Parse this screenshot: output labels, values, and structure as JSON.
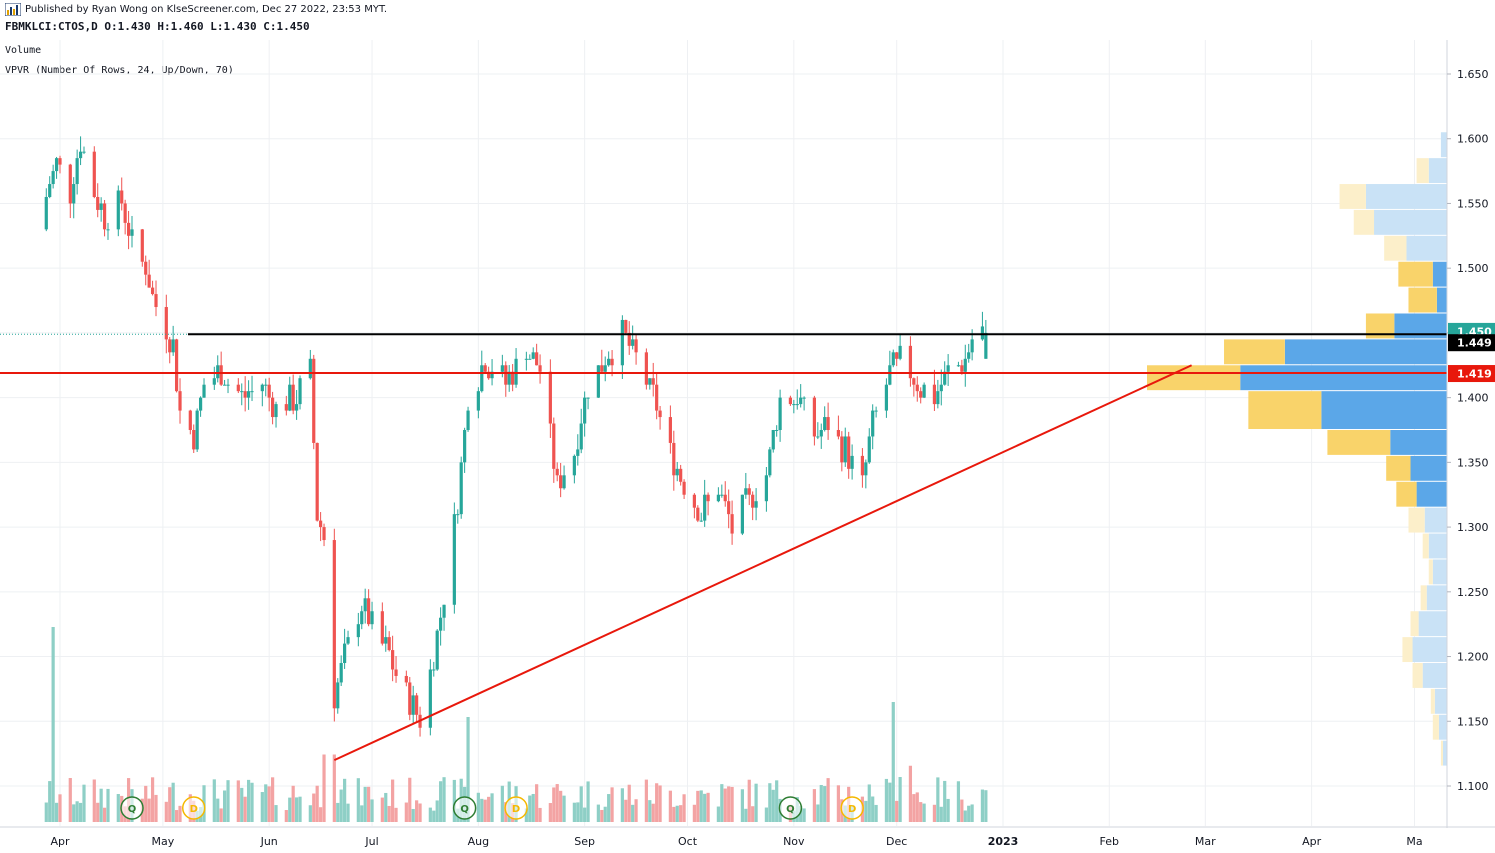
{
  "header": {
    "published": "Published by Ryan Wong on KlseScreener.com, Dec 27 2022, 23:53 MYT.",
    "symbol_line": "FBMKLCI:CTOS,D  O:1.430 H:1.460 L:1.430 C:1.450",
    "indicator_volume": "Volume",
    "indicator_vpvr": "VPVR (Number Of Rows, 24, Up/Down, 70)"
  },
  "colors": {
    "up": "#26a69a",
    "down": "#ef5350",
    "volume_up": "#8ecfc6",
    "volume_down": "#f3a3a3",
    "vpvr_up": "#5ba7e8",
    "vpvr_down": "#f9d36a",
    "vpvr_up_light": "#c9e2f6",
    "vpvr_down_light": "#fcefca",
    "resistance": "#000000",
    "support": "#e8180c",
    "trendline": "#e8180c",
    "grid": "#eef0f3",
    "event_q": "#2e7d32",
    "event_d": "#f5b800"
  },
  "chart_data": {
    "type": "candlestick",
    "title": "FBMKLCI:CTOS,D",
    "ylim": [
      1.095,
      1.665
    ],
    "grid": true,
    "x_tick_labels": [
      "Apr",
      "May",
      "Jun",
      "Jul",
      "Aug",
      "Sep",
      "Oct",
      "Nov",
      "Dec",
      "2023",
      "Feb",
      "Mar",
      "Apr",
      "Ma"
    ],
    "y_tick_labels": [
      "1.650",
      "1.600",
      "1.550",
      "1.500",
      "1.450",
      "1.400",
      "1.350",
      "1.300",
      "1.250",
      "1.200",
      "1.150",
      "1.100"
    ],
    "y_ticks": [
      1.65,
      1.6,
      1.55,
      1.5,
      1.45,
      1.4,
      1.35,
      1.3,
      1.25,
      1.2,
      1.15,
      1.1
    ],
    "last_ohlc": {
      "open": 1.43,
      "high": 1.46,
      "low": 1.43,
      "close": 1.45
    },
    "price_tags": [
      {
        "value": "1.450",
        "price": 1.45,
        "color": "#26a69a"
      },
      {
        "value": "1.449",
        "price": 1.449,
        "color": "#000000"
      },
      {
        "value": "1.419",
        "price": 1.419,
        "color": "#e8180c"
      }
    ],
    "horizontal_lines": [
      {
        "name": "resistance",
        "price": 1.449,
        "color": "#000000"
      },
      {
        "name": "support",
        "price": 1.419,
        "color": "#e8180c"
      }
    ],
    "trendline": {
      "from": {
        "date": "2022-06-20",
        "price": 1.12
      },
      "to": {
        "date": "2023-02-25",
        "price": 1.425
      }
    },
    "events": [
      {
        "label": "Q",
        "date": "2022-04-22",
        "kind": "quarterly"
      },
      {
        "label": "D",
        "date": "2022-05-10",
        "kind": "dividend"
      },
      {
        "label": "Q",
        "date": "2022-07-28",
        "kind": "quarterly"
      },
      {
        "label": "D",
        "date": "2022-08-12",
        "kind": "dividend"
      },
      {
        "label": "Q",
        "date": "2022-10-31",
        "kind": "quarterly"
      },
      {
        "label": "D",
        "date": "2022-11-18",
        "kind": "dividend"
      }
    ],
    "vpvr": [
      {
        "price_low": 1.115,
        "price_high": 1.135,
        "up": 2,
        "down": 1,
        "highlight": false
      },
      {
        "price_low": 1.135,
        "price_high": 1.155,
        "up": 4,
        "down": 3,
        "highlight": false
      },
      {
        "price_low": 1.155,
        "price_high": 1.175,
        "up": 6,
        "down": 2,
        "highlight": false
      },
      {
        "price_low": 1.175,
        "price_high": 1.195,
        "up": 12,
        "down": 5,
        "highlight": false
      },
      {
        "price_low": 1.195,
        "price_high": 1.215,
        "up": 17,
        "down": 5,
        "highlight": false
      },
      {
        "price_low": 1.215,
        "price_high": 1.235,
        "up": 14,
        "down": 4,
        "highlight": false
      },
      {
        "price_low": 1.235,
        "price_high": 1.255,
        "up": 10,
        "down": 3,
        "highlight": false
      },
      {
        "price_low": 1.255,
        "price_high": 1.275,
        "up": 7,
        "down": 2,
        "highlight": false
      },
      {
        "price_low": 1.275,
        "price_high": 1.295,
        "up": 9,
        "down": 3,
        "highlight": false
      },
      {
        "price_low": 1.295,
        "price_high": 1.315,
        "up": 11,
        "down": 8,
        "highlight": false
      },
      {
        "price_low": 1.315,
        "price_high": 1.335,
        "up": 15,
        "down": 10,
        "highlight": true
      },
      {
        "price_low": 1.335,
        "price_high": 1.355,
        "up": 18,
        "down": 12,
        "highlight": true
      },
      {
        "price_low": 1.355,
        "price_high": 1.375,
        "up": 28,
        "down": 31,
        "highlight": true
      },
      {
        "price_low": 1.375,
        "price_high": 1.405,
        "up": 62,
        "down": 36,
        "highlight": true
      },
      {
        "price_low": 1.405,
        "price_high": 1.425,
        "up": 102,
        "down": 46,
        "highlight": true
      },
      {
        "price_low": 1.425,
        "price_high": 1.445,
        "up": 80,
        "down": 30,
        "highlight": true
      },
      {
        "price_low": 1.445,
        "price_high": 1.465,
        "up": 26,
        "down": 14,
        "highlight": true
      },
      {
        "price_low": 1.465,
        "price_high": 1.485,
        "up": 5,
        "down": 14,
        "highlight": true
      },
      {
        "price_low": 1.485,
        "price_high": 1.505,
        "up": 7,
        "down": 17,
        "highlight": true
      },
      {
        "price_low": 1.505,
        "price_high": 1.525,
        "up": 20,
        "down": 11,
        "highlight": false
      },
      {
        "price_low": 1.525,
        "price_high": 1.545,
        "up": 36,
        "down": 10,
        "highlight": false
      },
      {
        "price_low": 1.545,
        "price_high": 1.565,
        "up": 40,
        "down": 13,
        "highlight": false
      },
      {
        "price_low": 1.565,
        "price_high": 1.585,
        "up": 9,
        "down": 6,
        "highlight": false
      },
      {
        "price_low": 1.585,
        "price_high": 1.605,
        "up": 3,
        "down": 0,
        "highlight": false
      }
    ]
  }
}
